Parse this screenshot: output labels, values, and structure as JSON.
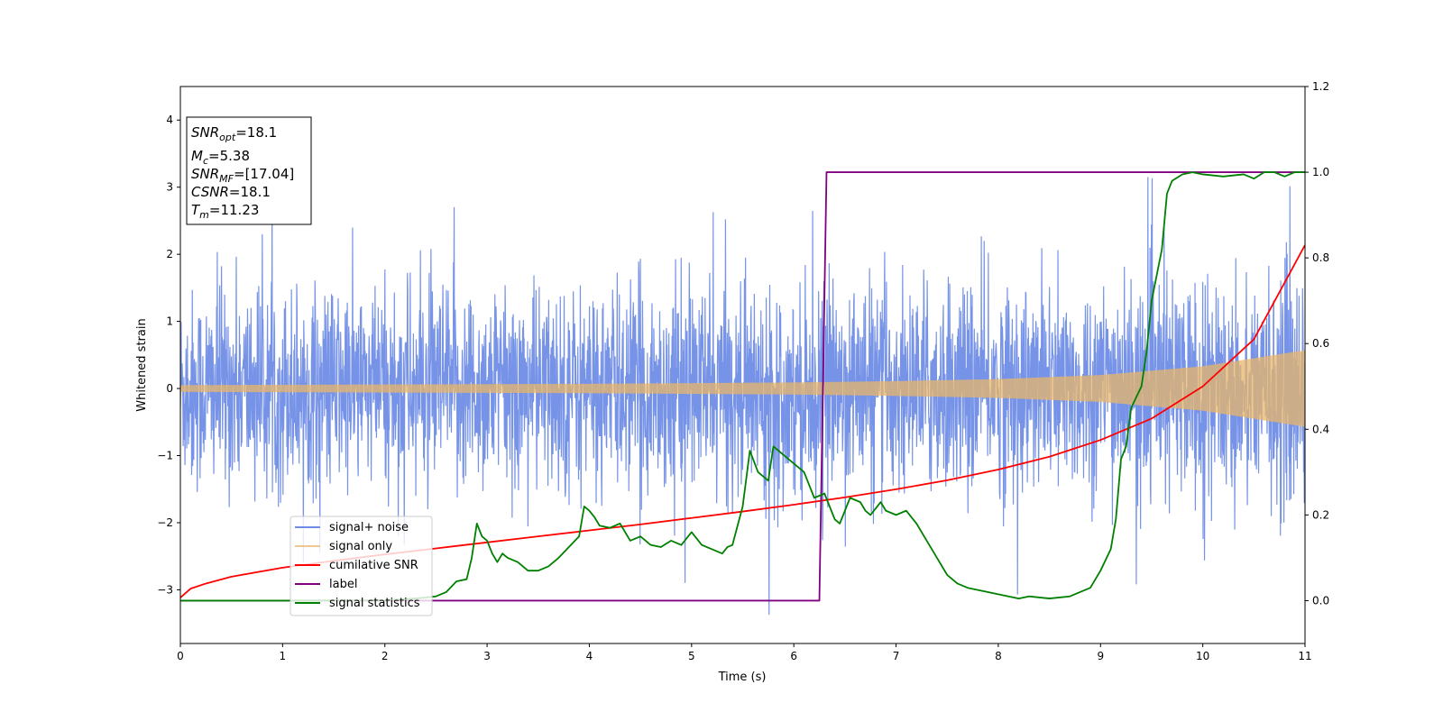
{
  "chart_data": {
    "type": "line",
    "xlabel": "Time (s)",
    "ylabel": "Whitened strain",
    "xlim": [
      0,
      11
    ],
    "ylim": [
      -3.8,
      4.5
    ],
    "ylim_right": [
      -0.1,
      1.2
    ],
    "xticks": [
      "0",
      "1",
      "2",
      "3",
      "4",
      "5",
      "6",
      "7",
      "8",
      "9",
      "10",
      "11"
    ],
    "yticks": [
      "−3",
      "−2",
      "−1",
      "0",
      "1",
      "2",
      "3",
      "4"
    ],
    "yticks_right": [
      "0.0",
      "0.2",
      "0.4",
      "0.6",
      "0.8",
      "1.0",
      "1.2"
    ],
    "grid": false,
    "legend_position": "lower-left",
    "info_box": {
      "snr_opt": "=18.1",
      "mc": "=5.38",
      "snr_mf": "=[17.04]",
      "csnr": "=18.1",
      "tm": "=11.23"
    },
    "series": [
      {
        "name": "signal+ noise",
        "axis": "left",
        "color": "#6f8de6",
        "kind": "noise",
        "sigma": 0.75,
        "min": -3.45,
        "max": 3.15
      },
      {
        "name": "signal only",
        "axis": "left",
        "color": "#e8b56a",
        "kind": "chirp",
        "envelope": [
          [
            0,
            0.05
          ],
          [
            2,
            0.06
          ],
          [
            4,
            0.07
          ],
          [
            6,
            0.09
          ],
          [
            7,
            0.11
          ],
          [
            8,
            0.14
          ],
          [
            9,
            0.2
          ],
          [
            10,
            0.33
          ],
          [
            11,
            0.57
          ]
        ]
      },
      {
        "name": "cumilative SNR",
        "axis": "right",
        "color": "#ff0000",
        "x": [
          0,
          0.1,
          0.25,
          0.5,
          1,
          1.5,
          2,
          2.5,
          3,
          3.5,
          4,
          4.5,
          5,
          5.5,
          6,
          6.5,
          7,
          7.5,
          8,
          8.5,
          9,
          9.5,
          10,
          10.5,
          11
        ],
        "y": [
          0.007,
          0.028,
          0.04,
          0.056,
          0.077,
          0.093,
          0.108,
          0.122,
          0.136,
          0.15,
          0.164,
          0.178,
          0.193,
          0.208,
          0.224,
          0.241,
          0.26,
          0.281,
          0.306,
          0.336,
          0.375,
          0.425,
          0.5,
          0.61,
          0.83
        ]
      },
      {
        "name": "label",
        "axis": "right",
        "color": "#800080",
        "x": [
          0,
          6.25,
          6.32,
          11
        ],
        "y": [
          0,
          0,
          1,
          1
        ]
      },
      {
        "name": "signal statistics",
        "axis": "right",
        "color": "#008000",
        "x": [
          0,
          1,
          2,
          2.3,
          2.5,
          2.6,
          2.7,
          2.8,
          2.85,
          2.9,
          2.95,
          3.0,
          3.05,
          3.1,
          3.15,
          3.2,
          3.3,
          3.4,
          3.5,
          3.6,
          3.7,
          3.8,
          3.9,
          3.95,
          4.0,
          4.05,
          4.1,
          4.2,
          4.3,
          4.4,
          4.5,
          4.6,
          4.7,
          4.8,
          4.9,
          5.0,
          5.1,
          5.2,
          5.3,
          5.35,
          5.4,
          5.5,
          5.57,
          5.65,
          5.75,
          5.8,
          5.9,
          6.0,
          6.1,
          6.2,
          6.3,
          6.4,
          6.45,
          6.55,
          6.65,
          6.7,
          6.75,
          6.85,
          6.9,
          7.0,
          7.1,
          7.2,
          7.3,
          7.4,
          7.5,
          7.6,
          7.7,
          7.8,
          8.0,
          8.2,
          8.3,
          8.5,
          8.7,
          8.9,
          9.0,
          9.1,
          9.15,
          9.2,
          9.25,
          9.3,
          9.4,
          9.45,
          9.5,
          9.6,
          9.65,
          9.7,
          9.8,
          9.9,
          10.0,
          10.2,
          10.4,
          10.5,
          10.6,
          10.7,
          10.8,
          10.9,
          11.0
        ],
        "y": [
          0,
          0,
          0.001,
          0.005,
          0.01,
          0.02,
          0.045,
          0.05,
          0.1,
          0.18,
          0.15,
          0.14,
          0.11,
          0.09,
          0.11,
          0.1,
          0.09,
          0.07,
          0.07,
          0.08,
          0.1,
          0.125,
          0.15,
          0.22,
          0.21,
          0.195,
          0.175,
          0.17,
          0.18,
          0.14,
          0.15,
          0.13,
          0.125,
          0.14,
          0.13,
          0.16,
          0.13,
          0.12,
          0.11,
          0.125,
          0.13,
          0.22,
          0.35,
          0.3,
          0.28,
          0.36,
          0.34,
          0.32,
          0.3,
          0.24,
          0.25,
          0.19,
          0.18,
          0.24,
          0.23,
          0.21,
          0.2,
          0.23,
          0.21,
          0.2,
          0.21,
          0.18,
          0.14,
          0.1,
          0.06,
          0.04,
          0.03,
          0.025,
          0.015,
          0.005,
          0.01,
          0.005,
          0.01,
          0.03,
          0.07,
          0.12,
          0.19,
          0.33,
          0.36,
          0.45,
          0.5,
          0.58,
          0.7,
          0.82,
          0.95,
          0.98,
          0.995,
          1.0,
          0.995,
          0.99,
          0.995,
          0.985,
          1.0,
          1.0,
          0.99,
          1.0,
          1.0
        ]
      }
    ]
  }
}
